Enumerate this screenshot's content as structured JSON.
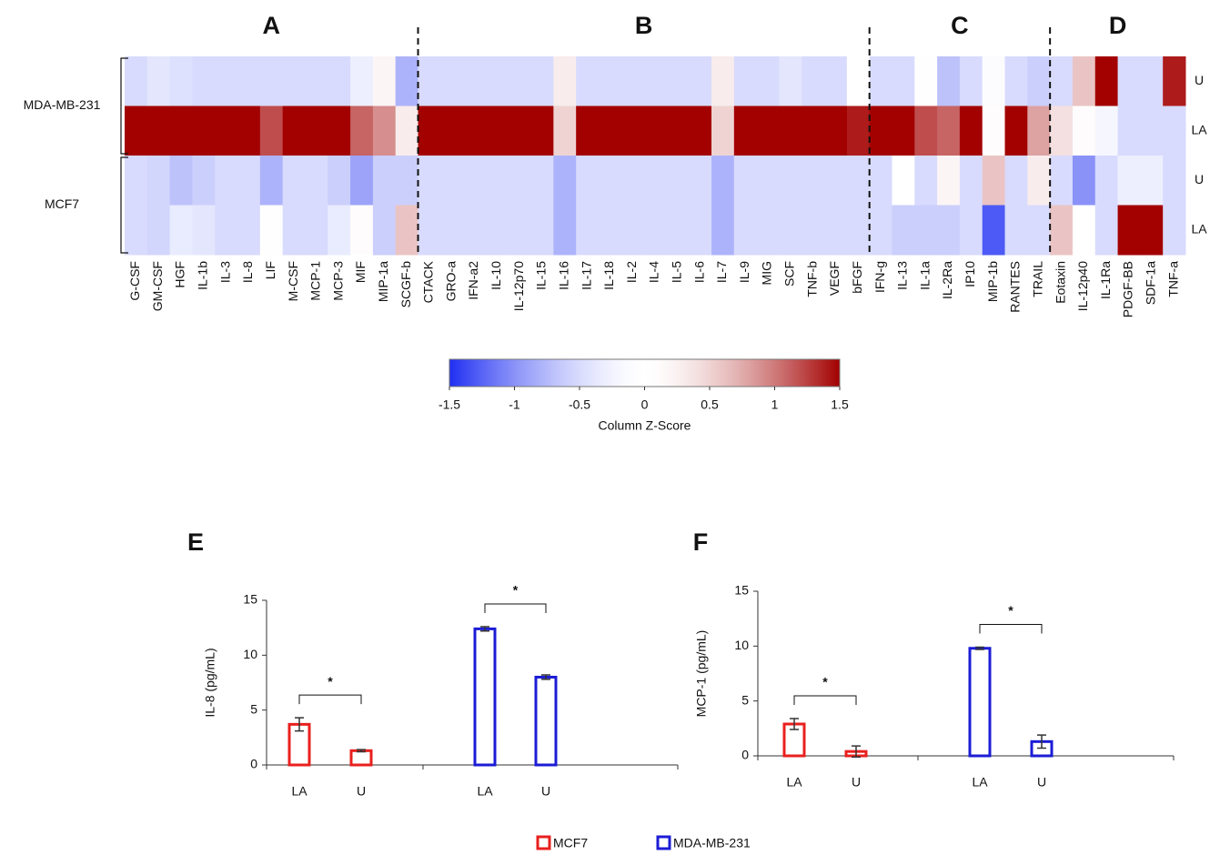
{
  "chart_data": [
    {
      "type": "heatmap",
      "column_groups": [
        {
          "label": "A",
          "columns": [
            "G-CSF",
            "GM-CSF",
            "HGF",
            "IL-1b",
            "IL-3",
            "IL-8",
            "LIF",
            "M-CSF",
            "MCP-1",
            "MCP-3",
            "MIF",
            "MIP-1a",
            "SCGF-b"
          ]
        },
        {
          "label": "B",
          "columns": [
            "CTACK",
            "GRO-a",
            "IFN-a2",
            "IL-10",
            "IL-12p70",
            "IL-15",
            "IL-16",
            "IL-17",
            "IL-18",
            "IL-2",
            "IL-4",
            "IL-5",
            "IL-6",
            "IL-7",
            "IL-9",
            "MIG",
            "SCF",
            "TNF-b",
            "VEGF",
            "bFGF"
          ]
        },
        {
          "label": "C",
          "columns": [
            "IFN-g",
            "IL-13",
            "IL-1a",
            "IL-2Ra",
            "IP10",
            "MIP-1b",
            "RANTES",
            "TRAIL"
          ]
        },
        {
          "label": "D",
          "columns": [
            "Eotaxin",
            "IL-12p40",
            "IL-1Ra",
            "PDGF-BB",
            "SDF-1a",
            "TNF-a"
          ]
        }
      ],
      "row_groups": [
        {
          "label": "MDA-MB-231",
          "rows": [
            "U",
            "LA"
          ]
        },
        {
          "label": "MCF7",
          "rows": [
            "U",
            "LA"
          ]
        }
      ],
      "values": [
        [
          -0.5,
          -0.4,
          -0.45,
          -0.5,
          -0.5,
          -0.5,
          -0.5,
          -0.5,
          -0.5,
          -0.5,
          -0.3,
          0.2,
          -0.8,
          -0.5,
          -0.5,
          -0.5,
          -0.5,
          -0.5,
          -0.5,
          0.3,
          -0.5,
          -0.5,
          -0.5,
          -0.5,
          -0.5,
          -0.5,
          0.3,
          -0.5,
          -0.5,
          -0.4,
          -0.5,
          -0.5,
          0,
          -0.5,
          -0.5,
          0.05,
          -0.7,
          -0.5,
          -0.1,
          -0.5,
          -0.6,
          -0.5,
          0.6,
          1.5,
          -0.5,
          -0.5,
          1.4
        ],
        [
          1.5,
          1.5,
          1.5,
          1.5,
          1.5,
          1.5,
          1.2,
          1.5,
          1.5,
          1.5,
          1.1,
          0.9,
          0.3,
          1.5,
          1.5,
          1.5,
          1.5,
          1.5,
          1.5,
          0.5,
          1.5,
          1.5,
          1.5,
          1.5,
          1.5,
          1.5,
          0.5,
          1.5,
          1.5,
          1.5,
          1.5,
          1.5,
          1.4,
          1.5,
          1.5,
          1.2,
          1.1,
          1.5,
          0.1,
          1.5,
          0.8,
          0.4,
          0.1,
          -0.2,
          -0.5,
          -0.5,
          -0.5
        ],
        [
          -0.5,
          -0.55,
          -0.7,
          -0.6,
          -0.5,
          -0.5,
          -0.8,
          -0.5,
          -0.5,
          -0.6,
          -0.9,
          -0.6,
          -0.6,
          -0.5,
          -0.5,
          -0.5,
          -0.5,
          -0.5,
          -0.5,
          -0.8,
          -0.5,
          -0.5,
          -0.5,
          -0.5,
          -0.5,
          -0.5,
          -0.8,
          -0.5,
          -0.5,
          -0.5,
          -0.5,
          -0.5,
          -0.5,
          -0.5,
          0,
          -0.5,
          0.2,
          -0.5,
          0.6,
          -0.5,
          0.3,
          -0.5,
          -1,
          -0.5,
          -0.3,
          -0.3,
          -0.5
        ],
        [
          -0.5,
          -0.55,
          -0.35,
          -0.4,
          -0.5,
          -0.5,
          0.05,
          -0.5,
          -0.5,
          -0.35,
          0.1,
          -0.6,
          0.6,
          -0.5,
          -0.5,
          -0.5,
          -0.5,
          -0.5,
          -0.5,
          -0.8,
          -0.5,
          -0.5,
          -0.5,
          -0.5,
          -0.5,
          -0.5,
          -0.8,
          -0.5,
          -0.5,
          -0.5,
          -0.5,
          -0.5,
          -0.5,
          -0.5,
          -0.6,
          -0.6,
          -0.6,
          -0.5,
          -1.3,
          -0.5,
          -0.5,
          0.6,
          0,
          -0.5,
          1.5,
          1.5,
          -0.5
        ]
      ],
      "colorbar": {
        "title": "Column Z-Score",
        "lim": [
          -1.5,
          1.5
        ],
        "ticks": [
          -1.5,
          -1,
          -0.5,
          0,
          0.5,
          1,
          1.5
        ],
        "colors": [
          "#1f2ff2",
          "#ffffff",
          "#a30000"
        ]
      }
    },
    {
      "type": "bar",
      "title": "E",
      "ylabel": "IL-8 (pg/mL)",
      "categories": [
        "LA",
        "U",
        "LA",
        "U"
      ],
      "ylim": [
        0,
        15
      ],
      "yticks": [
        0,
        5,
        10,
        15
      ],
      "series": [
        {
          "color": "#e8201e",
          "values": [
            3.7,
            1.3,
            null,
            null
          ],
          "errors": [
            0.6,
            0.1,
            null,
            null
          ]
        },
        {
          "color": "#1c1cd6",
          "values": [
            null,
            null,
            12.4,
            8.0
          ],
          "errors": [
            null,
            null,
            0.2,
            0.2
          ]
        }
      ],
      "annotations": [
        "*",
        "*"
      ]
    },
    {
      "type": "bar",
      "title": "F",
      "ylabel": "MCP-1 (pg/mL)",
      "categories": [
        "LA",
        "U",
        "LA",
        "U"
      ],
      "ylim": [
        0,
        15
      ],
      "yticks": [
        0,
        5,
        10,
        15
      ],
      "series": [
        {
          "color": "#e8201e",
          "values": [
            2.9,
            0.4,
            null,
            null
          ],
          "errors": [
            0.5,
            0.5,
            null,
            null
          ]
        },
        {
          "color": "#1c1cd6",
          "values": [
            null,
            null,
            9.8,
            1.3
          ],
          "errors": [
            null,
            null,
            0.1,
            0.6
          ]
        }
      ],
      "annotations": [
        "*",
        "*"
      ]
    }
  ],
  "legend": [
    {
      "name": "MCF7",
      "color": "#e8201e"
    },
    {
      "name": "MDA-MB-231",
      "color": "#1c1cd6"
    }
  ]
}
